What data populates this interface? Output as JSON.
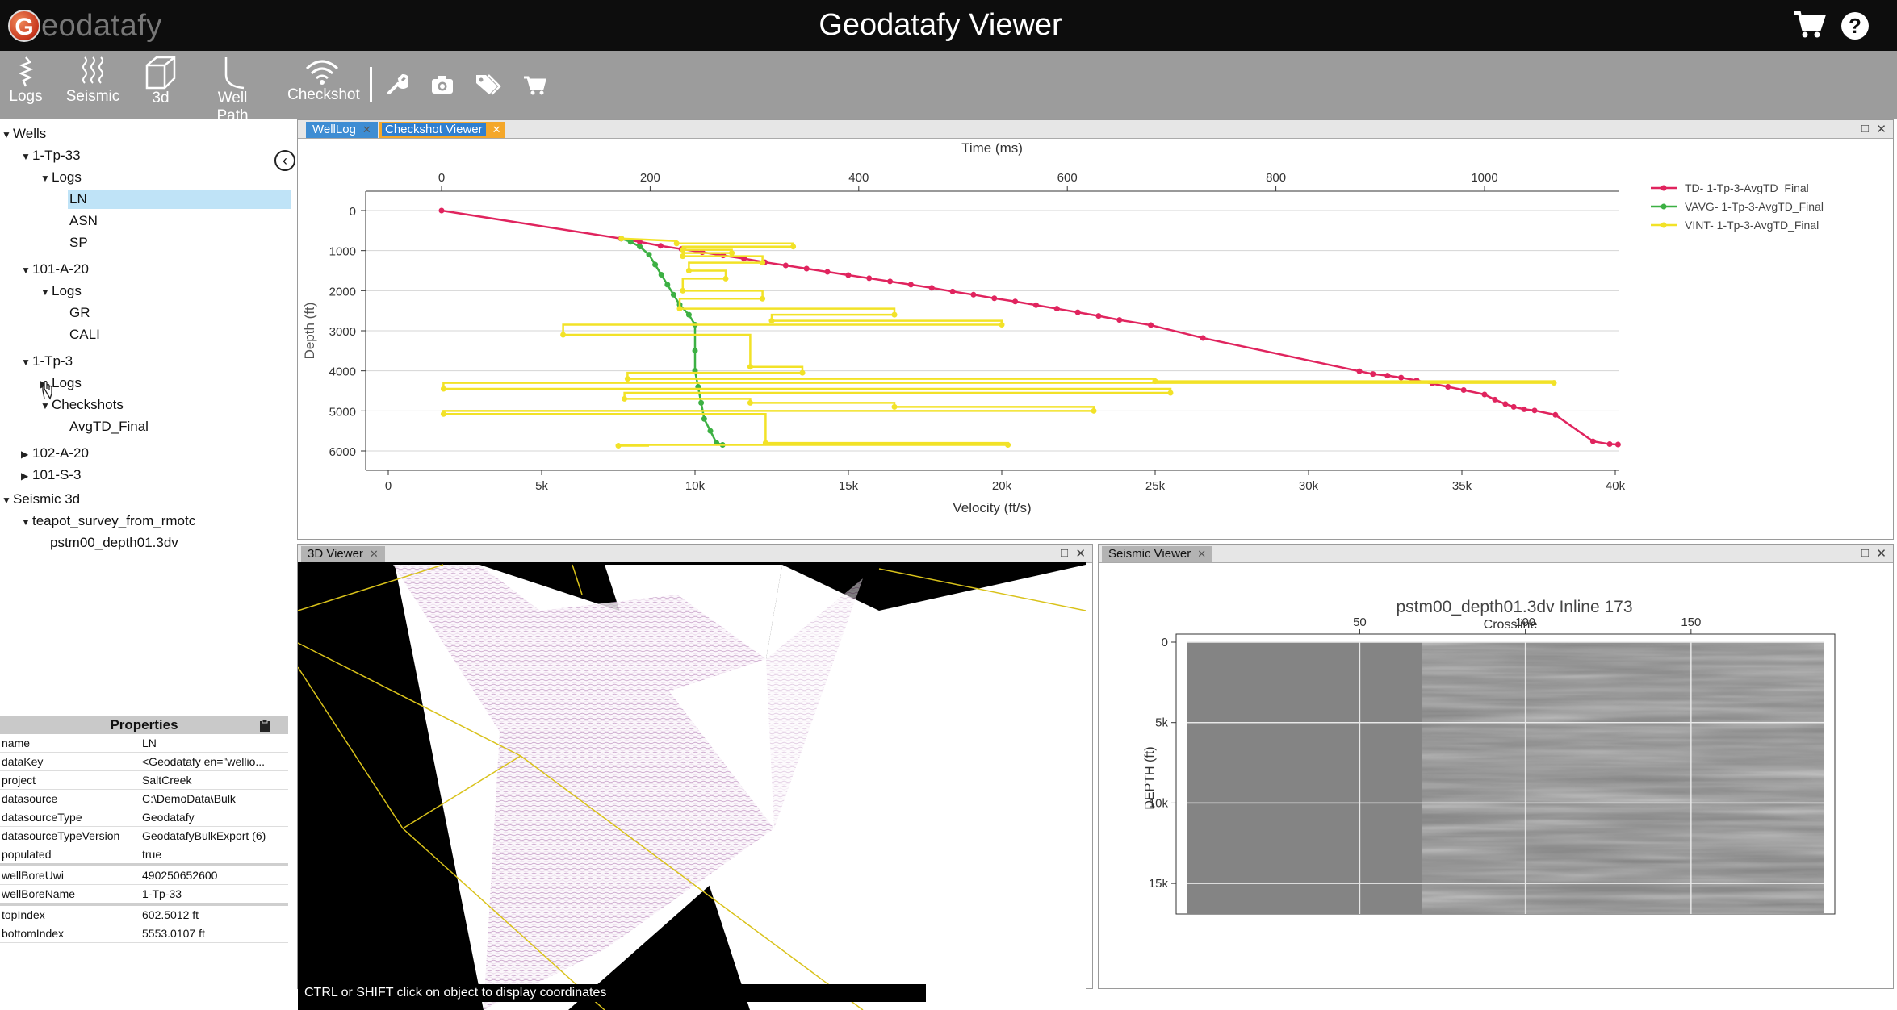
{
  "app": {
    "logo_text": "eodatafy",
    "logo_letter": "G",
    "title": "Geodatafy Viewer"
  },
  "header_icons": {
    "cart": "cart-icon",
    "help": "help-icon"
  },
  "toolbar": {
    "logs": "Logs",
    "seismic": "Seismic",
    "three_d": "3d",
    "well_path": "Well Path",
    "checkshot": "Checkshot",
    "icons": [
      "wrench-icon",
      "camera-icon",
      "tags-icon",
      "cart-add-icon"
    ]
  },
  "tree": {
    "wells": "Wells",
    "well1": "1-Tp-33",
    "well1_logs": "Logs",
    "well1_log1": "LN",
    "well1_log2": "ASN",
    "well1_log3": "SP",
    "well2": "101-A-20",
    "well2_logs": "Logs",
    "well2_log1": "GR",
    "well2_log2": "CALI",
    "well3": "1-Tp-3",
    "well3_logs": "Logs",
    "well3_checkshots": "Checkshots",
    "well3_cs1": "AvgTD_Final",
    "well4": "102-A-20",
    "well5": "101-S-3",
    "seismic": "Seismic 3d",
    "survey": "teapot_survey_from_rmotc",
    "volume": "pstm00_depth01.3dv"
  },
  "properties": {
    "title": "Properties",
    "rows": [
      {
        "k": "name",
        "v": "LN"
      },
      {
        "k": "dataKey",
        "v": "<Geodatafy en=\"wellio..."
      },
      {
        "k": "project",
        "v": "SaltCreek"
      },
      {
        "k": "datasource",
        "v": "C:\\DemoData\\Bulk"
      },
      {
        "k": "datasourceType",
        "v": "Geodatafy"
      },
      {
        "k": "datasourceTypeVersion",
        "v": "GeodatafyBulkExport (6)"
      },
      {
        "k": "populated",
        "v": "true"
      },
      {
        "k": "wellBoreUwi",
        "v": "490250652600"
      },
      {
        "k": "wellBoreName",
        "v": "1-Tp-33"
      },
      {
        "k": "topIndex",
        "v": "602.5012 ft"
      },
      {
        "k": "bottomIndex",
        "v": "5553.0107 ft"
      }
    ]
  },
  "tabs": {
    "welllog": "WellLog",
    "checkshot": "Checkshot Viewer",
    "viewer3d": "3D Viewer",
    "seismic": "Seismic Viewer"
  },
  "viewer3d": {
    "hint": "CTRL or SHIFT click on object to display coordinates"
  },
  "chart_data": [
    {
      "type": "line",
      "top_axis_label": "Time (ms)",
      "top_ticks": [
        "0",
        "200",
        "400",
        "600",
        "800",
        "1000"
      ],
      "top_range": [
        0,
        1130
      ],
      "xlabel": "Velocity (ft/s)",
      "x_ticks": [
        "0",
        "5k",
        "10k",
        "15k",
        "20k",
        "25k",
        "30k",
        "35k",
        "40k"
      ],
      "xlim": [
        0,
        40000
      ],
      "ylabel": "Depth (ft)",
      "y_ticks": [
        "0",
        "1000",
        "2000",
        "3000",
        "4000",
        "5000",
        "6000"
      ],
      "ylim": [
        0,
        6000
      ],
      "legend_position": "right",
      "series": [
        {
          "name": "TD- 1-Tp-3-AvgTD_Final",
          "color": "#e0245e",
          "axis": "time",
          "points": [
            [
              0,
              0
            ],
            [
              172,
              700
            ],
            [
              190,
              780
            ],
            [
              210,
              880
            ],
            [
              230,
              960
            ],
            [
              250,
              1040
            ],
            [
              270,
              1120
            ],
            [
              290,
              1200
            ],
            [
              310,
              1290
            ],
            [
              330,
              1370
            ],
            [
              350,
              1450
            ],
            [
              370,
              1530
            ],
            [
              390,
              1610
            ],
            [
              410,
              1690
            ],
            [
              430,
              1770
            ],
            [
              450,
              1850
            ],
            [
              470,
              1930
            ],
            [
              490,
              2020
            ],
            [
              510,
              2100
            ],
            [
              530,
              2190
            ],
            [
              550,
              2270
            ],
            [
              570,
              2360
            ],
            [
              590,
              2450
            ],
            [
              610,
              2540
            ],
            [
              630,
              2630
            ],
            [
              650,
              2730
            ],
            [
              680,
              2860
            ],
            [
              730,
              3180
            ],
            [
              880,
              4010
            ],
            [
              893,
              4080
            ],
            [
              907,
              4120
            ],
            [
              920,
              4170
            ],
            [
              935,
              4240
            ],
            [
              950,
              4320
            ],
            [
              965,
              4400
            ],
            [
              980,
              4480
            ],
            [
              1000,
              4590
            ],
            [
              1010,
              4720
            ],
            [
              1020,
              4830
            ],
            [
              1028,
              4900
            ],
            [
              1038,
              4960
            ],
            [
              1048,
              4990
            ],
            [
              1068,
              5100
            ],
            [
              1104,
              5760
            ],
            [
              1120,
              5830
            ],
            [
              1128,
              5840
            ]
          ]
        },
        {
          "name": "VAVG- 1-Tp-3-AvgTD_Final",
          "color": "#3cb043",
          "axis": "velocity",
          "points": [
            [
              7600,
              700
            ],
            [
              7900,
              780
            ],
            [
              8200,
              900
            ],
            [
              8500,
              1100
            ],
            [
              8700,
              1350
            ],
            [
              8900,
              1600
            ],
            [
              9100,
              1850
            ],
            [
              9300,
              2100
            ],
            [
              9500,
              2350
            ],
            [
              9800,
              2600
            ],
            [
              10000,
              2850
            ],
            [
              10000,
              3500
            ],
            [
              10000,
              4000
            ],
            [
              10100,
              4400
            ],
            [
              10200,
              4800
            ],
            [
              10300,
              5200
            ],
            [
              10500,
              5500
            ],
            [
              10700,
              5800
            ],
            [
              10900,
              5850
            ]
          ]
        },
        {
          "name": "VINT- 1-Tp-3-AvgTD_Final",
          "color": "#f2e227",
          "axis": "velocity",
          "points": [
            [
              7600,
              700
            ],
            [
              9400,
              760
            ],
            [
              9400,
              820
            ],
            [
              13200,
              820
            ],
            [
              13200,
              900
            ],
            [
              9600,
              900
            ],
            [
              9600,
              980
            ],
            [
              11200,
              980
            ],
            [
              11200,
              1060
            ],
            [
              9600,
              1060
            ],
            [
              9600,
              1140
            ],
            [
              12200,
              1140
            ],
            [
              12200,
              1300
            ],
            [
              9800,
              1300
            ],
            [
              9800,
              1500
            ],
            [
              11000,
              1500
            ],
            [
              11000,
              1700
            ],
            [
              9600,
              1700
            ],
            [
              9600,
              2000
            ],
            [
              12200,
              2000
            ],
            [
              12200,
              2200
            ],
            [
              9500,
              2200
            ],
            [
              9500,
              2450
            ],
            [
              16500,
              2450
            ],
            [
              16500,
              2600
            ],
            [
              12500,
              2600
            ],
            [
              12500,
              2750
            ],
            [
              20000,
              2750
            ],
            [
              20000,
              2850
            ],
            [
              5700,
              2850
            ],
            [
              5700,
              3100
            ],
            [
              11800,
              3100
            ],
            [
              11800,
              3900
            ],
            [
              13500,
              3900
            ],
            [
              13500,
              4050
            ],
            [
              7800,
              4050
            ],
            [
              7800,
              4200
            ],
            [
              25000,
              4200
            ],
            [
              25000,
              4260
            ],
            [
              38000,
              4260
            ],
            [
              38000,
              4300
            ],
            [
              1800,
              4300
            ],
            [
              1800,
              4450
            ],
            [
              25500,
              4450
            ],
            [
              25500,
              4550
            ],
            [
              7700,
              4550
            ],
            [
              7700,
              4700
            ],
            [
              11800,
              4700
            ],
            [
              11800,
              4800
            ],
            [
              16500,
              4800
            ],
            [
              16500,
              4900
            ],
            [
              23000,
              4900
            ],
            [
              23000,
              5000
            ],
            [
              1800,
              5000
            ],
            [
              1800,
              5080
            ],
            [
              12300,
              5080
            ],
            [
              12300,
              5800
            ],
            [
              20200,
              5800
            ],
            [
              20200,
              5850
            ],
            [
              7500,
              5850
            ],
            [
              7500,
              5870
            ],
            [
              8500,
              5870
            ]
          ]
        }
      ]
    },
    {
      "type": "heatmap",
      "title": "pstm00_depth01.3dv  Inline 173",
      "top_axis_label": "Crossline",
      "x_ticks": [
        "50",
        "100",
        "150"
      ],
      "xlim": [
        -2,
        190
      ],
      "ylabel": "DEPTH (ft)",
      "y_ticks": [
        "0",
        "5k",
        "10k",
        "15k"
      ],
      "ylim": [
        0,
        16900
      ],
      "colormap": "gray"
    }
  ]
}
